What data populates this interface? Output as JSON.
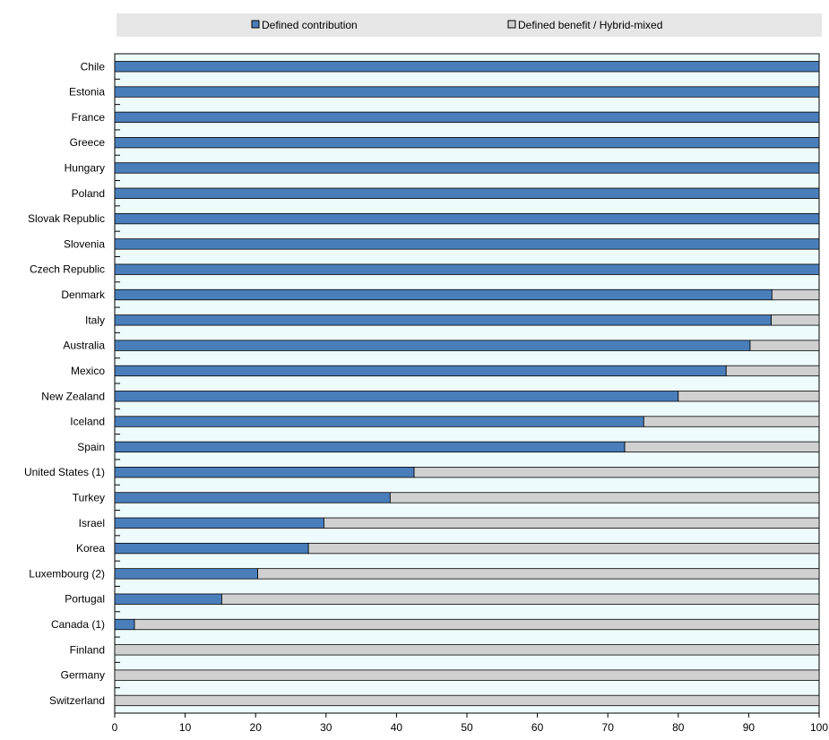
{
  "chart_data": {
    "type": "bar",
    "orientation": "horizontal",
    "stacked": true,
    "title": "",
    "xlabel": "",
    "ylabel": "",
    "xlim": [
      0,
      100
    ],
    "xticks": [
      0,
      10,
      20,
      30,
      40,
      50,
      60,
      70,
      80,
      90,
      100
    ],
    "grid": false,
    "legend_position": "top",
    "categories": [
      "Chile",
      "Estonia",
      "France",
      "Greece",
      "Hungary",
      "Poland",
      "Slovak Republic",
      "Slovenia",
      "Czech Republic",
      "Denmark",
      "Italy",
      "Australia",
      "Mexico",
      "New Zealand",
      "Iceland",
      "Spain",
      "United States (1)",
      "Turkey",
      "Israel",
      "Korea",
      "Luxembourg (2)",
      "Portugal",
      "Canada (1)",
      "Finland",
      "Germany",
      "Switzerland"
    ],
    "series": [
      {
        "name": "Defined contribution",
        "color": "#4a7ebb",
        "values": [
          100,
          100,
          100,
          100,
          100,
          100,
          100,
          100,
          100,
          93.3,
          93.2,
          90.2,
          86.8,
          80.0,
          75.1,
          72.4,
          42.5,
          39.1,
          29.7,
          27.5,
          20.3,
          15.2,
          2.8,
          0,
          0,
          0
        ]
      },
      {
        "name": "Defined benefit / Hybrid-mixed",
        "color": "#d0d0d0",
        "values": [
          0,
          0,
          0,
          0,
          0,
          0,
          0,
          0,
          0,
          6.7,
          6.8,
          9.8,
          13.2,
          20.0,
          24.9,
          27.6,
          57.5,
          60.9,
          70.3,
          72.5,
          79.7,
          84.8,
          97.2,
          100,
          100,
          100
        ]
      }
    ]
  },
  "colors": {
    "plot_background": "#eefbfc",
    "legend_background": "#e6e6e6",
    "bar_outline": "#000000"
  }
}
